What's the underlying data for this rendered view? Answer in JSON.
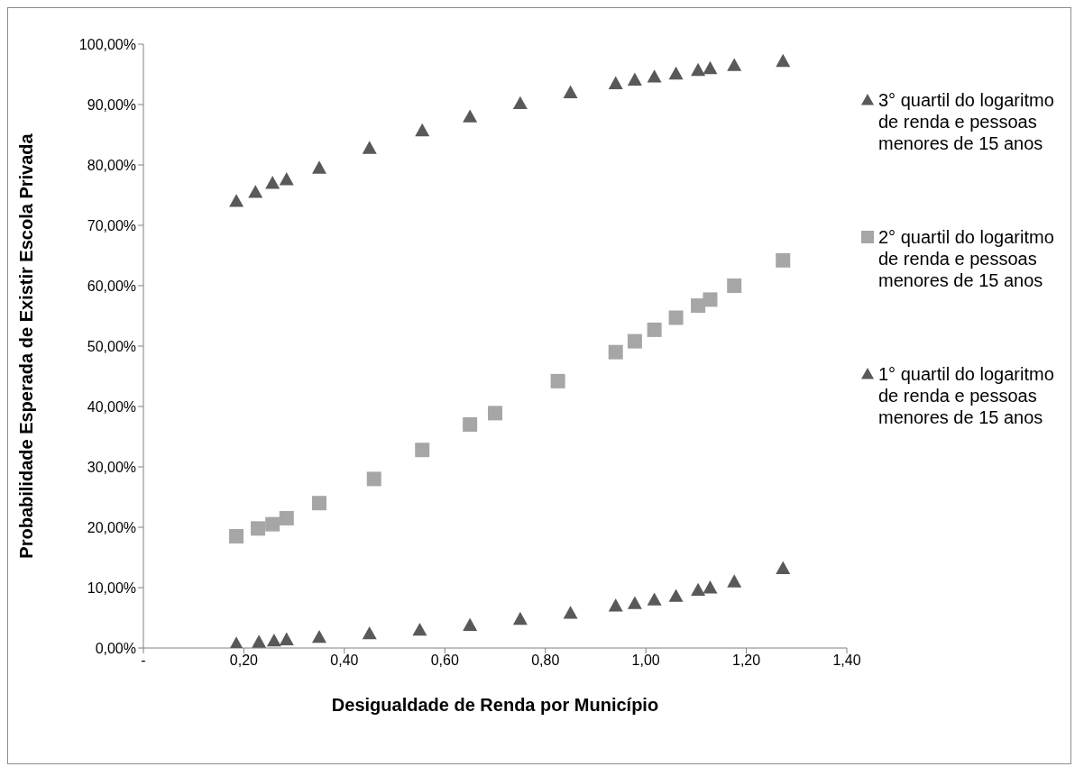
{
  "chart_data": {
    "type": "scatter",
    "xlabel": "Desigualdade de Renda por Município",
    "ylabel": "Probabilidade Esperada de Existir Escola Privada",
    "xlim": [
      0,
      1.4
    ],
    "xticks": [
      {
        "value": 0,
        "label": "-"
      },
      {
        "value": 0.2,
        "label": "0,20"
      },
      {
        "value": 0.4,
        "label": "0,40"
      },
      {
        "value": 0.6,
        "label": "0,60"
      },
      {
        "value": 0.8,
        "label": "0,80"
      },
      {
        "value": 1.0,
        "label": "1,00"
      },
      {
        "value": 1.2,
        "label": "1,20"
      },
      {
        "value": 1.4,
        "label": "1,40"
      }
    ],
    "ylim": [
      0,
      100
    ],
    "yticks": [
      {
        "value": 0,
        "label": "0,00%"
      },
      {
        "value": 10,
        "label": "10,00%"
      },
      {
        "value": 20,
        "label": "20,00%"
      },
      {
        "value": 30,
        "label": "30,00%"
      },
      {
        "value": 40,
        "label": "40,00%"
      },
      {
        "value": 50,
        "label": "50,00%"
      },
      {
        "value": 60,
        "label": "60,00%"
      },
      {
        "value": 70,
        "label": "70,00%"
      },
      {
        "value": 80,
        "label": "80,00%"
      },
      {
        "value": 90,
        "label": "90,00%"
      },
      {
        "value": 100,
        "label": "100,00%"
      }
    ],
    "grid": false,
    "legend": "right",
    "series": [
      {
        "name": "3° quartil do logaritmo de renda e pessoas menores de 15 anos",
        "color": "#595959",
        "marker": "triangle",
        "x": [
          0.185,
          0.223,
          0.257,
          0.285,
          0.35,
          0.45,
          0.555,
          0.65,
          0.75,
          0.85,
          0.94,
          0.978,
          1.017,
          1.06,
          1.104,
          1.128,
          1.176,
          1.273
        ],
        "values": [
          74.0,
          75.5,
          77.0,
          77.6,
          79.5,
          82.8,
          85.7,
          88.0,
          90.2,
          92.0,
          93.5,
          94.1,
          94.6,
          95.1,
          95.7,
          96.0,
          96.5,
          97.2
        ]
      },
      {
        "name": "2° quartil do logaritmo de renda e pessoas menores de 15 anos",
        "color": "#a6a6a6",
        "marker": "square",
        "x": [
          0.185,
          0.228,
          0.257,
          0.285,
          0.35,
          0.459,
          0.555,
          0.65,
          0.7,
          0.825,
          0.94,
          0.978,
          1.017,
          1.06,
          1.104,
          1.128,
          1.176,
          1.273
        ],
        "values": [
          18.5,
          19.8,
          20.5,
          21.5,
          24.0,
          28.0,
          32.8,
          37.0,
          38.9,
          44.2,
          49.0,
          50.8,
          52.7,
          54.7,
          56.7,
          57.7,
          60.0,
          64.2
        ]
      },
      {
        "name": "1° quartil do logaritmo de renda e pessoas menores de 15 anos",
        "color": "#595959",
        "marker": "triangle",
        "x": [
          0.185,
          0.23,
          0.26,
          0.285,
          0.35,
          0.45,
          0.55,
          0.65,
          0.75,
          0.85,
          0.94,
          0.978,
          1.017,
          1.06,
          1.104,
          1.128,
          1.176,
          1.273
        ],
        "values": [
          0.7,
          1.0,
          1.2,
          1.4,
          1.8,
          2.4,
          3.0,
          3.8,
          4.8,
          5.8,
          7.0,
          7.4,
          8.0,
          8.6,
          9.6,
          10.0,
          11.0,
          13.2
        ]
      }
    ]
  }
}
